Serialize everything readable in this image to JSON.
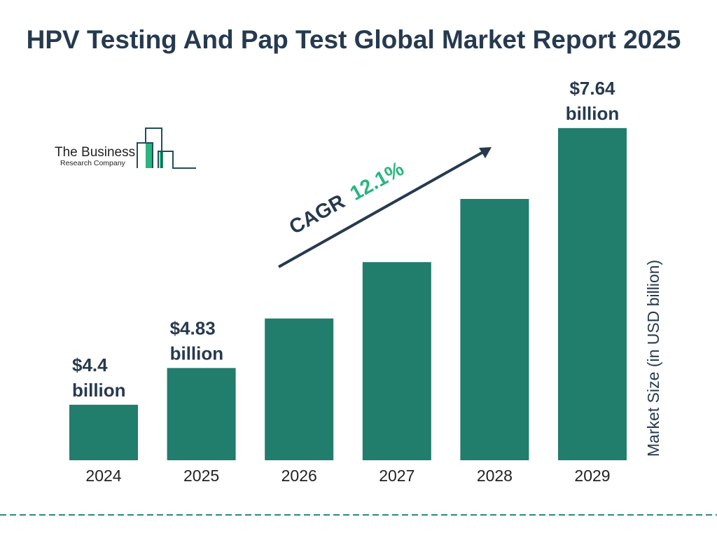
{
  "title": "HPV Testing And Pap Test Global Market Report 2025",
  "logo": {
    "line1": "The Business",
    "line2": "Research Company"
  },
  "cagr": {
    "label": "CAGR",
    "value": "12.1%"
  },
  "colors": {
    "bar": "#217d6c",
    "title": "#263a4f",
    "cagr_value": "#2bb57f",
    "dashed_line": "#2a8a7a"
  },
  "chart_data": {
    "type": "bar",
    "categories": [
      "2024",
      "2025",
      "2026",
      "2027",
      "2028",
      "2029"
    ],
    "values": [
      4.4,
      4.83,
      5.41,
      6.07,
      6.81,
      7.64
    ],
    "data_labels": [
      "$4.4 billion",
      "$4.83 billion",
      "",
      "",
      "",
      "$7.64 billion"
    ],
    "ylabel": "Market Size (in USD billion)",
    "grid": false,
    "legend": "none"
  }
}
